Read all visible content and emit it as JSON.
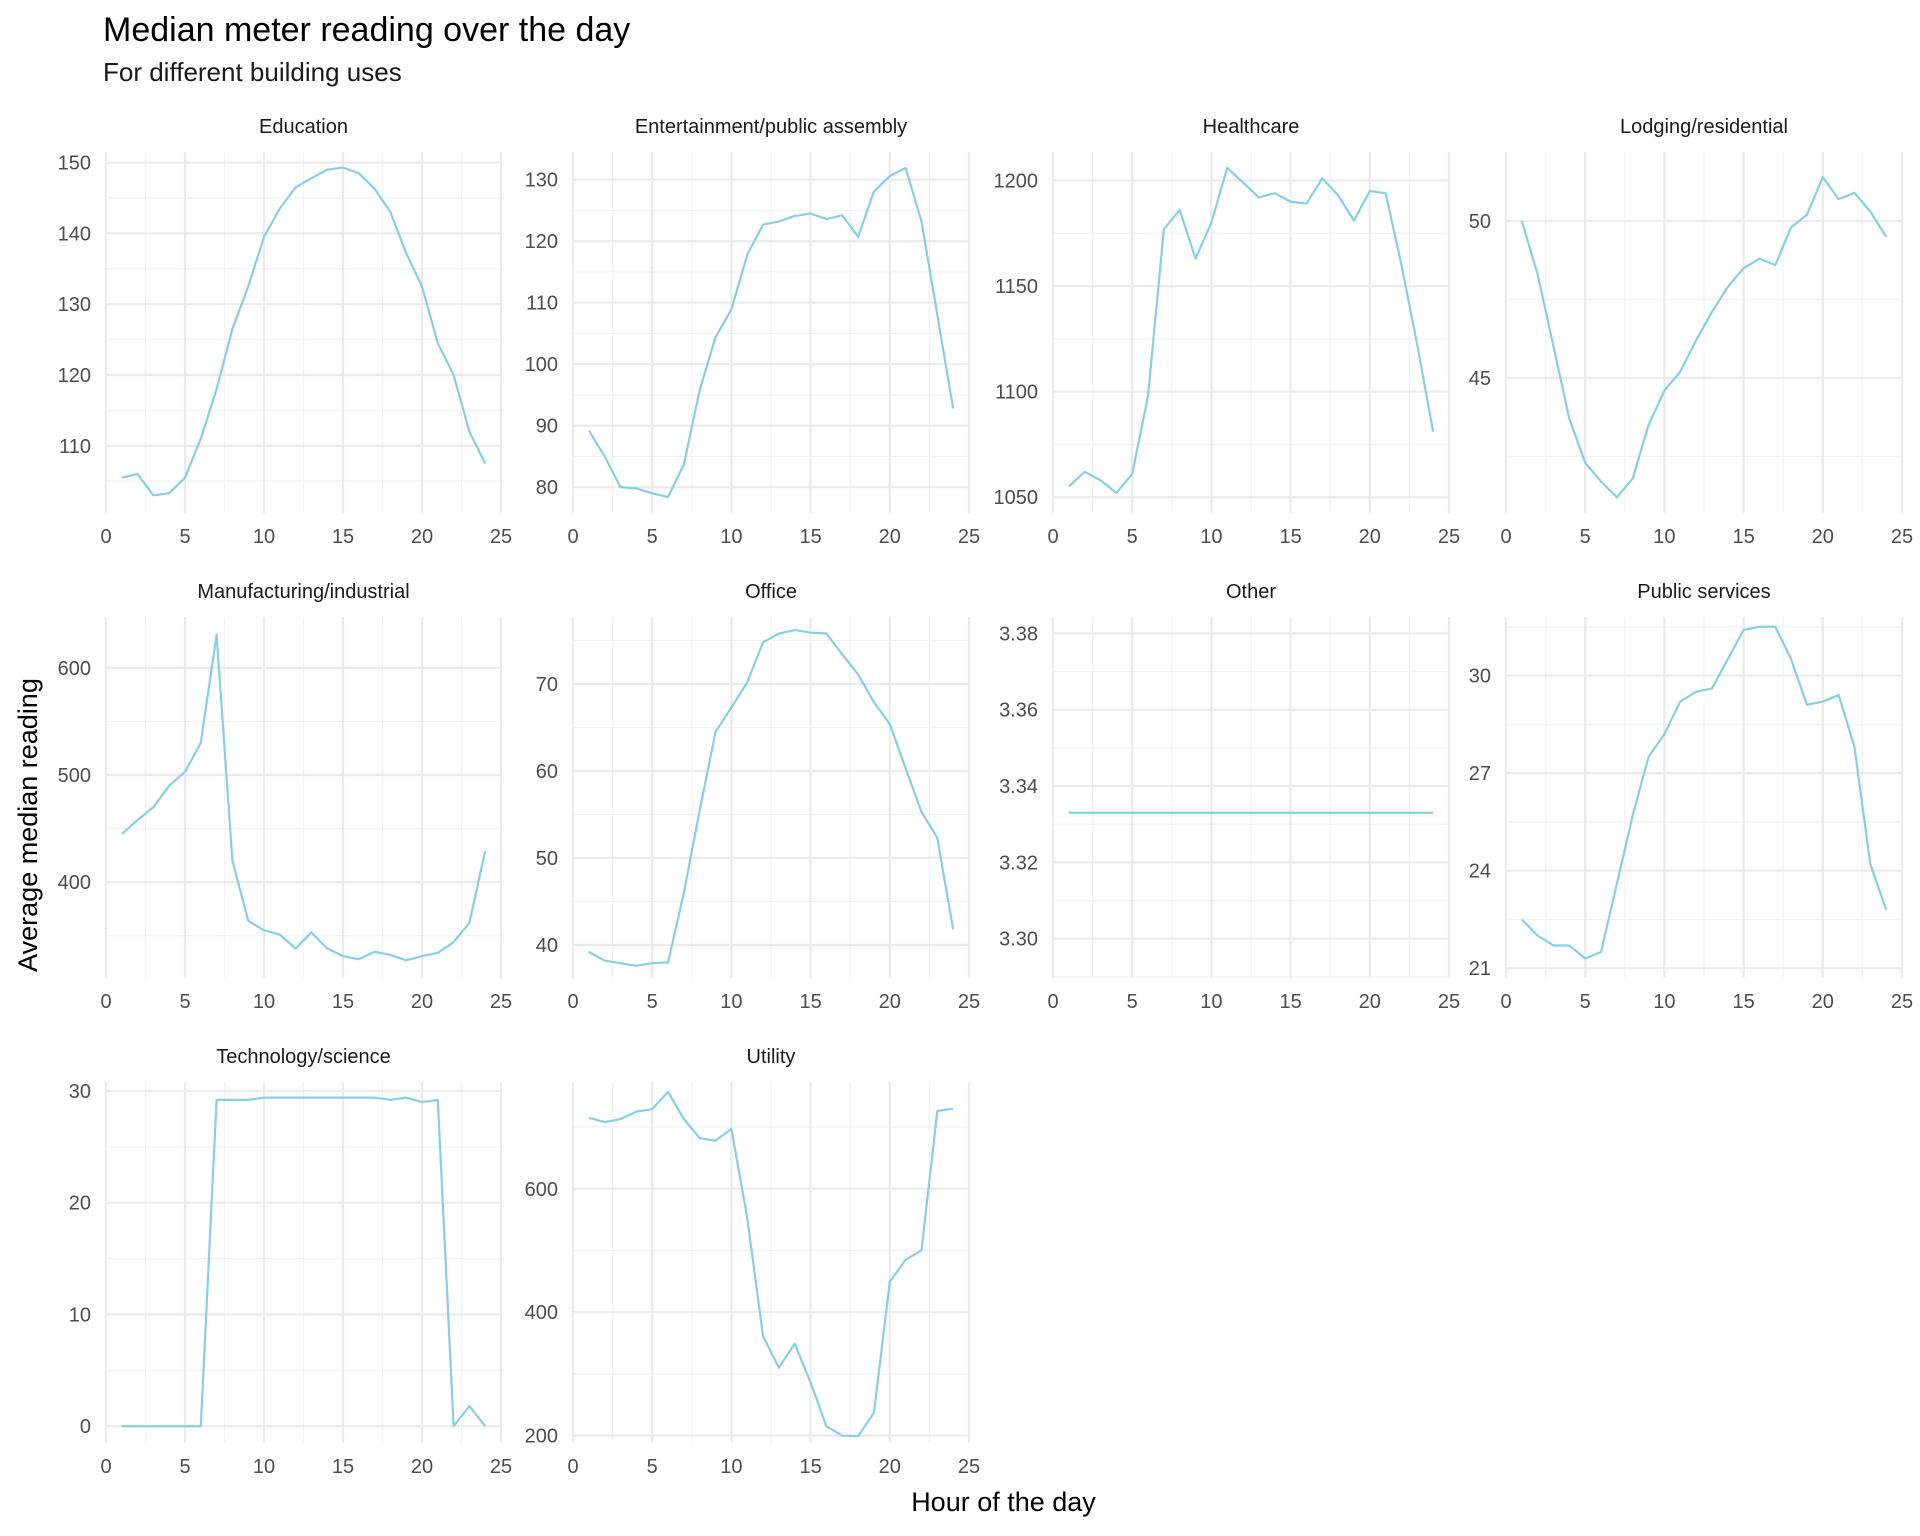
{
  "title": "Median meter reading over the day",
  "subtitle": "For different building uses",
  "x_axis_label": "Hour of the day",
  "y_axis_label": "Average median reading",
  "line_color": "#87CEEB",
  "chart_data": [
    {
      "type": "line",
      "facet": "Education",
      "x": [
        1,
        2,
        3,
        4,
        5,
        6,
        7,
        8,
        9,
        10,
        11,
        12,
        13,
        14,
        15,
        16,
        17,
        18,
        19,
        20,
        21,
        22,
        23,
        24
      ],
      "values": [
        105.5,
        106,
        103,
        103.3,
        105.5,
        111,
        118,
        126.5,
        132.5,
        139.5,
        143.5,
        146.5,
        147.8,
        149,
        149.3,
        148.5,
        146.3,
        143,
        137.2,
        132.5,
        124.5,
        120,
        112,
        107.5
      ],
      "xlim": [
        0,
        25
      ],
      "ylim": [
        100.5,
        151.5
      ],
      "x_ticks": [
        0,
        5,
        10,
        15,
        20,
        25
      ],
      "y_ticks": [
        110,
        120,
        130,
        140,
        150
      ]
    },
    {
      "type": "line",
      "facet": "Entertainment/public assembly",
      "x": [
        1,
        2,
        3,
        4,
        5,
        6,
        7,
        8,
        9,
        10,
        11,
        12,
        13,
        14,
        15,
        16,
        17,
        18,
        19,
        20,
        21,
        22,
        23,
        24
      ],
      "values": [
        89.2,
        85,
        80,
        79.8,
        79,
        78.4,
        83.7,
        95.8,
        104.4,
        108.9,
        117.8,
        122.7,
        123.2,
        124.1,
        124.5,
        123.6,
        124.2,
        120.7,
        128.1,
        130.6,
        131.9,
        123.2,
        108,
        92.8
      ],
      "xlim": [
        0,
        25
      ],
      "ylim": [
        75.8,
        134.5
      ],
      "x_ticks": [
        0,
        5,
        10,
        15,
        20,
        25
      ],
      "y_ticks": [
        80,
        90,
        100,
        110,
        120,
        130
      ]
    },
    {
      "type": "line",
      "facet": "Healthcare",
      "x": [
        1,
        2,
        3,
        4,
        5,
        6,
        7,
        8,
        9,
        10,
        11,
        12,
        13,
        14,
        15,
        16,
        17,
        18,
        19,
        20,
        21,
        22,
        23,
        24
      ],
      "values": [
        1055,
        1062,
        1058,
        1052,
        1061,
        1098,
        1177,
        1186,
        1163,
        1180,
        1206,
        1199,
        1192,
        1194,
        1190,
        1189,
        1201,
        1193,
        1181,
        1195,
        1194,
        1160,
        1122,
        1081
      ],
      "xlim": [
        0,
        25
      ],
      "ylim": [
        1042.5,
        1213.5
      ],
      "x_ticks": [
        0,
        5,
        10,
        15,
        20,
        25
      ],
      "y_ticks": [
        1050,
        1100,
        1150,
        1200
      ]
    },
    {
      "type": "line",
      "facet": "Lodging/residential",
      "x": [
        1,
        2,
        3,
        4,
        5,
        6,
        7,
        8,
        9,
        10,
        11,
        12,
        13,
        14,
        15,
        16,
        17,
        18,
        19,
        20,
        21,
        22,
        23,
        24
      ],
      "values": [
        50,
        48.3,
        46,
        43.7,
        42.3,
        41.7,
        41.2,
        41.8,
        43.5,
        44.6,
        45.2,
        46.2,
        47.1,
        47.9,
        48.5,
        48.8,
        48.6,
        49.8,
        50.2,
        51.4,
        50.7,
        50.9,
        50.3,
        49.5
      ],
      "xlim": [
        0,
        25
      ],
      "ylim": [
        40.7,
        52.2
      ],
      "x_ticks": [
        0,
        5,
        10,
        15,
        20,
        25
      ],
      "y_ticks": [
        45,
        50
      ]
    },
    {
      "type": "line",
      "facet": "Manufacturing/industrial",
      "x": [
        1,
        2,
        3,
        4,
        5,
        6,
        7,
        8,
        9,
        10,
        11,
        12,
        13,
        14,
        15,
        16,
        17,
        18,
        19,
        20,
        21,
        22,
        23,
        24
      ],
      "values": [
        445,
        458,
        470,
        490,
        503,
        530,
        631,
        420,
        364,
        355,
        351,
        338,
        353,
        338,
        331,
        328,
        335,
        332,
        327,
        331,
        334,
        344,
        362,
        429
      ],
      "xlim": [
        0,
        25
      ],
      "ylim": [
        310.5,
        647.5
      ],
      "x_ticks": [
        0,
        5,
        10,
        15,
        20,
        25
      ],
      "y_ticks": [
        400,
        500,
        600
      ]
    },
    {
      "type": "line",
      "facet": "Office",
      "x": [
        1,
        2,
        3,
        4,
        5,
        6,
        7,
        8,
        9,
        10,
        11,
        12,
        13,
        14,
        15,
        16,
        17,
        18,
        19,
        20,
        21,
        22,
        23,
        24
      ],
      "values": [
        39.2,
        38.2,
        37.9,
        37.6,
        37.9,
        38,
        46,
        55.5,
        64.5,
        67.3,
        70.2,
        74.8,
        75.8,
        76.2,
        75.9,
        75.8,
        73.4,
        71.1,
        67.9,
        65.4,
        60.3,
        55.3,
        52.3,
        41.8
      ],
      "xlim": [
        0,
        25
      ],
      "ylim": [
        36.2,
        77.7
      ],
      "x_ticks": [
        0,
        5,
        10,
        15,
        20,
        25
      ],
      "y_ticks": [
        40,
        50,
        60,
        70
      ]
    },
    {
      "type": "line",
      "facet": "Other",
      "x": [
        1,
        2,
        3,
        4,
        5,
        6,
        7,
        8,
        9,
        10,
        11,
        12,
        13,
        14,
        15,
        16,
        17,
        18,
        19,
        20,
        21,
        22,
        23,
        24
      ],
      "values": [
        3.333,
        3.333,
        3.333,
        3.333,
        3.333,
        3.333,
        3.333,
        3.333,
        3.333,
        3.333,
        3.333,
        3.333,
        3.333,
        3.333,
        3.333,
        3.333,
        3.333,
        3.333,
        3.333,
        3.333,
        3.333,
        3.333,
        3.333,
        3.333
      ],
      "xlim": [
        0,
        25
      ],
      "ylim": [
        3.2897,
        3.3843
      ],
      "x_ticks": [
        0,
        5,
        10,
        15,
        20,
        25
      ],
      "y_ticks": [
        3.3,
        3.32,
        3.34,
        3.36,
        3.38
      ]
    },
    {
      "type": "line",
      "facet": "Public services",
      "x": [
        1,
        2,
        3,
        4,
        5,
        6,
        7,
        8,
        9,
        10,
        11,
        12,
        13,
        14,
        15,
        16,
        17,
        18,
        19,
        20,
        21,
        22,
        23,
        24
      ],
      "values": [
        22.5,
        22,
        21.7,
        21.7,
        21.3,
        21.5,
        23.6,
        25.7,
        27.5,
        28.2,
        29.2,
        29.5,
        29.6,
        30.5,
        31.4,
        31.5,
        31.5,
        30.5,
        29.1,
        29.2,
        29.4,
        27.8,
        24.2,
        22.8
      ],
      "xlim": [
        0,
        25
      ],
      "ylim": [
        20.7,
        31.8
      ],
      "x_ticks": [
        0,
        5,
        10,
        15,
        20,
        25
      ],
      "y_ticks": [
        21,
        24,
        27,
        30
      ]
    },
    {
      "type": "line",
      "facet": "Technology/science",
      "x": [
        1,
        2,
        3,
        4,
        5,
        6,
        7,
        8,
        9,
        10,
        11,
        12,
        13,
        14,
        15,
        16,
        17,
        18,
        19,
        20,
        21,
        22,
        23,
        24
      ],
      "values": [
        0,
        0,
        0,
        0,
        0,
        0,
        29.2,
        29.2,
        29.2,
        29.4,
        29.4,
        29.4,
        29.4,
        29.4,
        29.4,
        29.4,
        29.4,
        29.2,
        29.4,
        29,
        29.2,
        0,
        1.8,
        0
      ],
      "xlim": [
        0,
        25
      ],
      "ylim": [
        -1.5,
        30.8
      ],
      "x_ticks": [
        0,
        5,
        10,
        15,
        20,
        25
      ],
      "y_ticks": [
        0,
        10,
        20,
        30
      ]
    },
    {
      "type": "line",
      "facet": "Utility",
      "x": [
        1,
        2,
        3,
        4,
        5,
        6,
        7,
        8,
        9,
        10,
        11,
        12,
        13,
        14,
        15,
        16,
        17,
        18,
        19,
        20,
        21,
        22,
        23,
        24
      ],
      "values": [
        715,
        708,
        713,
        725,
        729,
        757,
        713,
        682,
        678,
        697,
        553,
        361,
        310,
        349,
        286,
        215,
        200,
        199,
        237,
        449,
        485,
        500,
        726,
        730
      ],
      "xlim": [
        0,
        25
      ],
      "ylim": [
        188,
        773
      ],
      "x_ticks": [
        0,
        5,
        10,
        15,
        20,
        25
      ],
      "y_ticks": [
        200,
        400,
        600
      ]
    }
  ]
}
